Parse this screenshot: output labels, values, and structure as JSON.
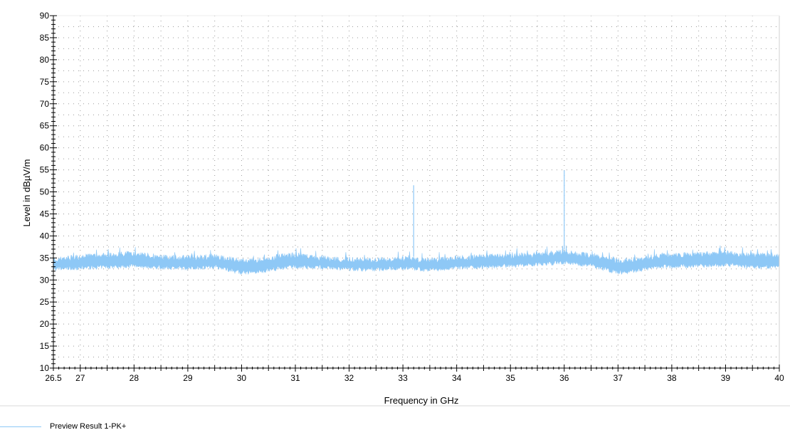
{
  "chart_data": {
    "type": "line",
    "title": "",
    "xlabel": "Frequency in GHz",
    "ylabel": "Level in dBµV/m",
    "xlim": [
      26.5,
      40
    ],
    "ylim": [
      10,
      90
    ],
    "x_ticks": [
      26.5,
      27,
      28,
      29,
      30,
      31,
      32,
      33,
      34,
      35,
      36,
      37,
      38,
      39,
      40
    ],
    "x_tick_labels": [
      "26.5",
      "27",
      "28",
      "29",
      "30",
      "31",
      "32",
      "33",
      "34",
      "35",
      "36",
      "37",
      "38",
      "39",
      "40"
    ],
    "y_ticks": [
      10,
      15,
      20,
      25,
      30,
      35,
      40,
      45,
      50,
      55,
      60,
      65,
      70,
      75,
      80,
      85,
      90
    ],
    "y_tick_labels": [
      "10",
      "15",
      "20",
      "25",
      "30",
      "35",
      "40",
      "45",
      "50",
      "55",
      "60",
      "65",
      "70",
      "75",
      "80",
      "85",
      "90"
    ],
    "grid": true,
    "legend_position": "bottom-left",
    "series": [
      {
        "name": "Preview Result 1-PK+",
        "color": "#8ec8f6",
        "band_low": [
          [
            26.5,
            32.0
          ],
          [
            27.0,
            32.3
          ],
          [
            27.5,
            32.5
          ],
          [
            28.0,
            32.8
          ],
          [
            28.5,
            32.4
          ],
          [
            29.0,
            32.2
          ],
          [
            29.5,
            32.6
          ],
          [
            30.0,
            31.2
          ],
          [
            30.3,
            31.4
          ],
          [
            30.7,
            32.2
          ],
          [
            31.0,
            32.6
          ],
          [
            31.5,
            32.4
          ],
          [
            32.0,
            32.0
          ],
          [
            32.5,
            32.0
          ],
          [
            33.0,
            32.3
          ],
          [
            33.5,
            31.8
          ],
          [
            34.0,
            32.3
          ],
          [
            34.5,
            32.6
          ],
          [
            35.0,
            32.8
          ],
          [
            35.5,
            33.1
          ],
          [
            36.0,
            33.5
          ],
          [
            36.5,
            32.9
          ],
          [
            37.0,
            31.2
          ],
          [
            37.3,
            31.6
          ],
          [
            37.7,
            32.5
          ],
          [
            38.0,
            32.6
          ],
          [
            38.5,
            32.8
          ],
          [
            39.0,
            33.0
          ],
          [
            39.5,
            32.6
          ],
          [
            40.0,
            32.4
          ]
        ],
        "band_high": [
          [
            26.5,
            35.2
          ],
          [
            27.0,
            35.8
          ],
          [
            27.5,
            36.3
          ],
          [
            28.0,
            36.6
          ],
          [
            28.5,
            35.8
          ],
          [
            29.0,
            35.6
          ],
          [
            29.5,
            35.9
          ],
          [
            30.0,
            34.9
          ],
          [
            30.3,
            35.1
          ],
          [
            30.7,
            35.9
          ],
          [
            31.0,
            36.3
          ],
          [
            31.5,
            35.6
          ],
          [
            32.0,
            35.2
          ],
          [
            32.5,
            35.1
          ],
          [
            33.0,
            35.5
          ],
          [
            33.5,
            35.0
          ],
          [
            34.0,
            35.6
          ],
          [
            34.5,
            35.9
          ],
          [
            35.0,
            36.1
          ],
          [
            35.5,
            36.3
          ],
          [
            36.0,
            36.9
          ],
          [
            36.5,
            36.1
          ],
          [
            37.0,
            34.9
          ],
          [
            37.3,
            35.1
          ],
          [
            37.7,
            36.0
          ],
          [
            38.0,
            36.2
          ],
          [
            38.5,
            36.4
          ],
          [
            39.0,
            36.7
          ],
          [
            39.5,
            36.2
          ],
          [
            40.0,
            36.0
          ]
        ],
        "spikes": [
          {
            "x": 33.2,
            "y": 51.5
          },
          {
            "x": 36.0,
            "y": 54.9
          }
        ]
      }
    ]
  }
}
